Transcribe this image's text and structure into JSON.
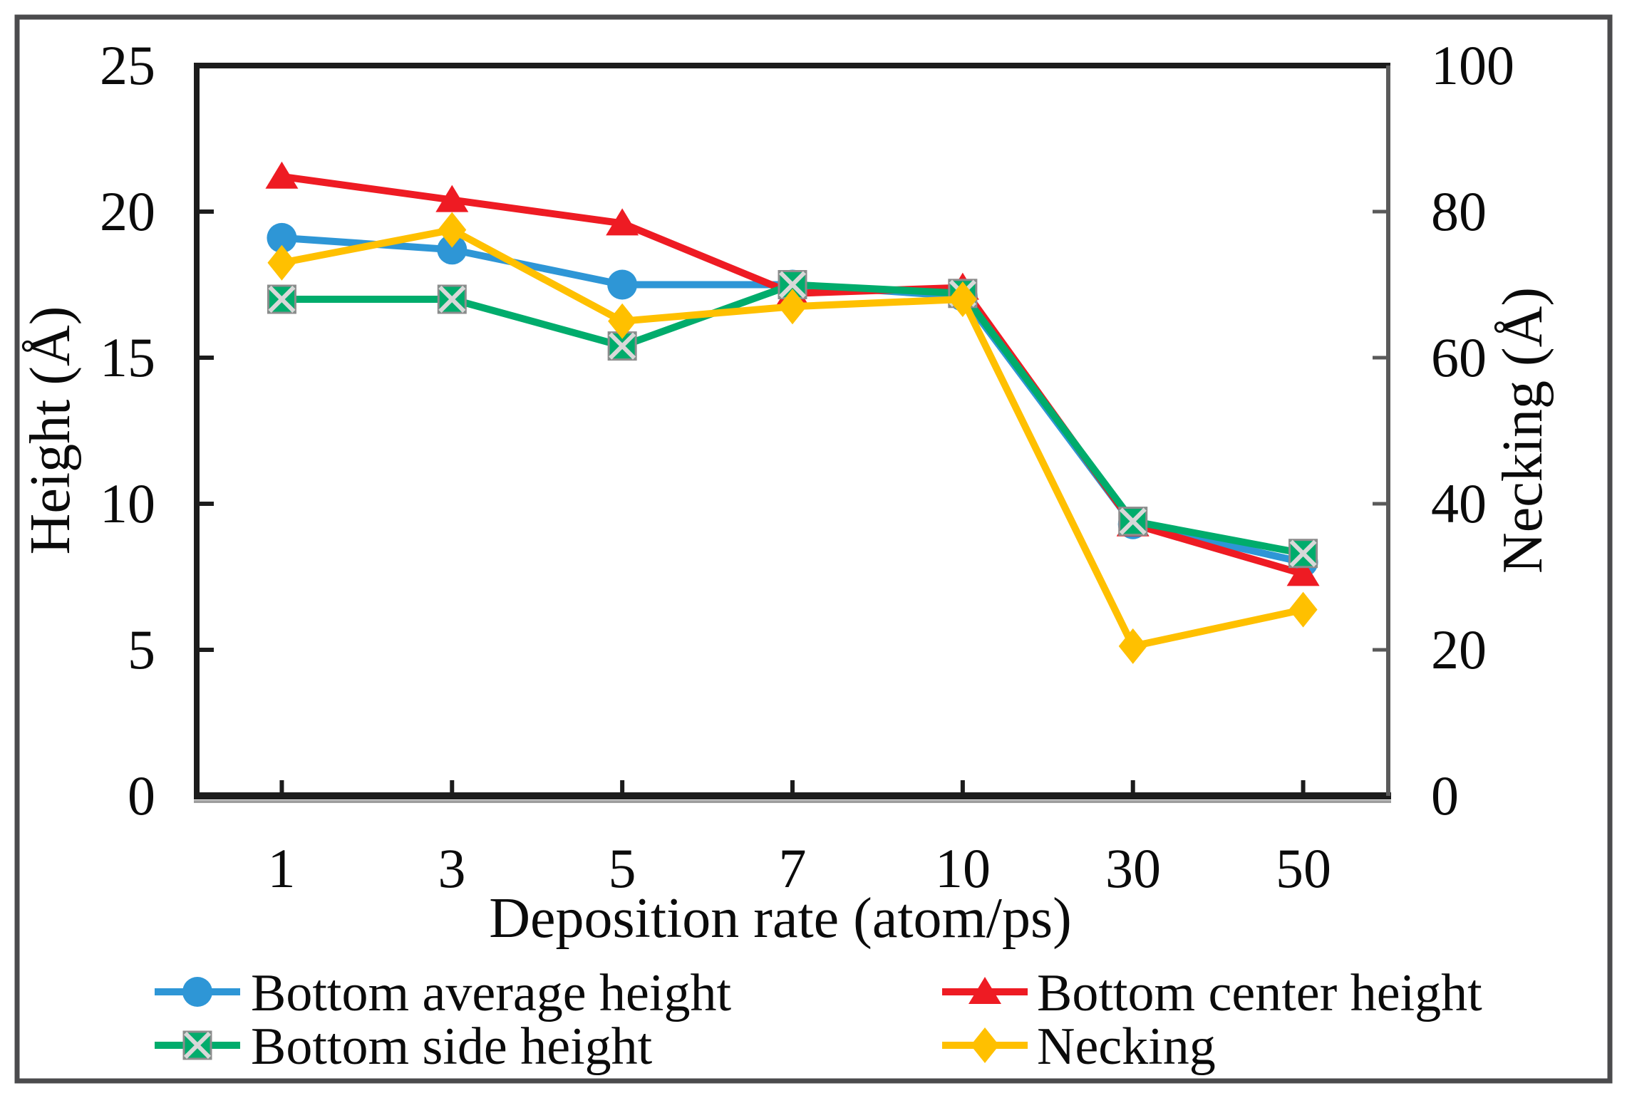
{
  "chart_data": {
    "type": "line",
    "x_categories": [
      "1",
      "3",
      "5",
      "7",
      "10",
      "30",
      "50"
    ],
    "xlabel": "Deposition rate (atom/ps)",
    "left_axis": {
      "label": "Height (Å)",
      "min": 0,
      "max": 25,
      "tick_step": 5,
      "tick_labels": [
        "0",
        "5",
        "10",
        "15",
        "20",
        "25"
      ]
    },
    "right_axis": {
      "label": "Necking (Å)",
      "min": 0,
      "max": 100,
      "tick_step": 20,
      "tick_labels": [
        "0",
        "20",
        "40",
        "60",
        "80",
        "100"
      ]
    },
    "grid": false,
    "legend_position": "bottom",
    "series": [
      {
        "name": "Bottom average height",
        "axis": "left",
        "marker": "circle",
        "color": "#2E96D6",
        "values": [
          19.1,
          18.7,
          17.5,
          17.5,
          17.1,
          9.3,
          8.0
        ]
      },
      {
        "name": "Bottom center height",
        "axis": "left",
        "marker": "triangle",
        "color": "#EE1B23",
        "values": [
          21.2,
          20.4,
          19.6,
          17.2,
          17.4,
          9.3,
          7.6
        ]
      },
      {
        "name": "Bottom side height",
        "axis": "left",
        "marker": "square-x",
        "color": "#00AC6C",
        "values": [
          17.0,
          17.0,
          15.4,
          17.5,
          17.2,
          9.4,
          8.3
        ]
      },
      {
        "name": "Necking",
        "axis": "right",
        "marker": "diamond",
        "color": "#FFC000",
        "values": [
          73,
          77.5,
          65,
          67,
          68,
          20.5,
          25.5
        ]
      }
    ]
  },
  "colors": {
    "spine": "#1c1c1c",
    "secondary_spine": "#5a5a5a",
    "border": "#4b4b4d",
    "marker_x_lines": "#d8d8d8",
    "marker_x_edge": "#8c8c8c"
  }
}
